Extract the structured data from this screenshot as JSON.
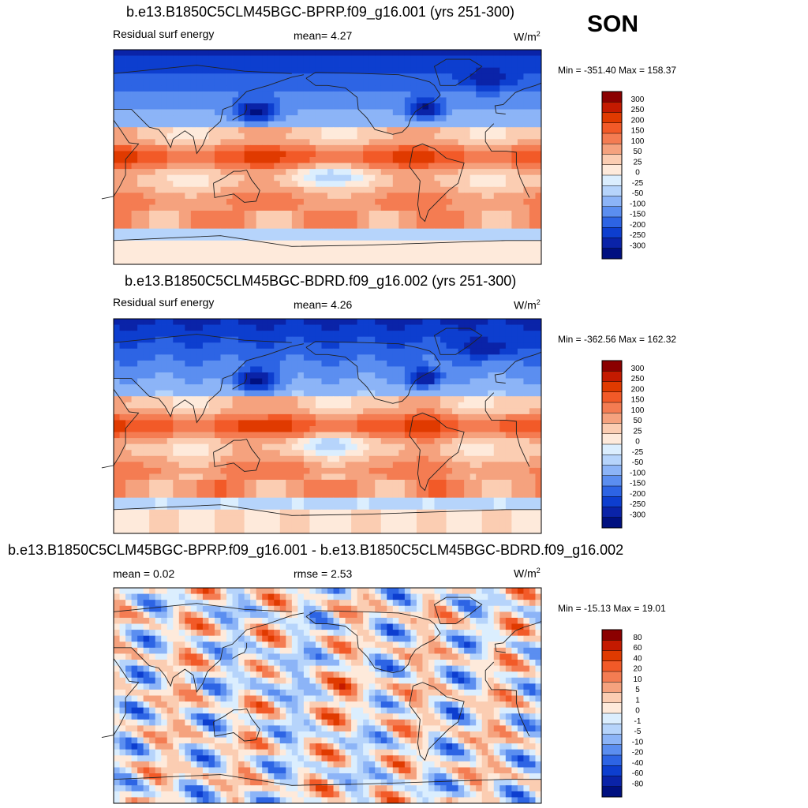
{
  "season": "SON",
  "panels": [
    {
      "title": "b.e13.B1850C5CLM45BGC-BPRP.f09_g16.001 (yrs 251-300)",
      "left_label": "Residual surf energy",
      "center_label": "mean=   4.27",
      "units": "W/m",
      "units_sup": "2",
      "minmax": "Min = -351.40 Max = 158.37"
    },
    {
      "title": "b.e13.B1850C5CLM45BGC-BDRD.f09_g16.002 (yrs 251-300)",
      "left_label": "Residual surf energy",
      "center_label": "mean=   4.26",
      "units": "W/m",
      "units_sup": "2",
      "minmax": "Min = -362.56 Max = 162.32"
    },
    {
      "title": "b.e13.B1850C5CLM45BGC-BPRP.f09_g16.001 - b.e13.B1850C5CLM45BGC-BDRD.f09_g16.002",
      "left_label": "mean =   0.02",
      "center_label": "rmse =   2.53",
      "units": "W/m",
      "units_sup": "2",
      "minmax": "Min = -15.13 Max =  19.01"
    }
  ],
  "chart_data": [
    {
      "type": "heatmap",
      "title": "b.e13.B1850C5CLM45BGC-BPRP.f09_g16.001 (yrs 251-300)",
      "variable": "Residual surf energy",
      "units": "W/m2",
      "mean": 4.27,
      "min": -351.4,
      "max": 158.37,
      "colorbar_levels": [
        "300",
        "250",
        "200",
        "150",
        "100",
        "50",
        "25",
        "0",
        "-25",
        "-50",
        "-100",
        "-150",
        "-200",
        "-250",
        "-300"
      ],
      "colorbar_colors": [
        "#8b0000",
        "#c41a00",
        "#e03a00",
        "#f25a28",
        "#f47c52",
        "#f5a27e",
        "#fbcdb2",
        "#feeadb",
        "#dbeefe",
        "#b6d4fb",
        "#8cb4f7",
        "#5b8ef0",
        "#2d64e4",
        "#0d3ecf",
        "#0a23a8",
        "#001080"
      ]
    },
    {
      "type": "heatmap",
      "title": "b.e13.B1850C5CLM45BGC-BDRD.f09_g16.002 (yrs 251-300)",
      "variable": "Residual surf energy",
      "units": "W/m2",
      "mean": 4.26,
      "min": -362.56,
      "max": 162.32,
      "colorbar_levels": [
        "300",
        "250",
        "200",
        "150",
        "100",
        "50",
        "25",
        "0",
        "-25",
        "-50",
        "-100",
        "-150",
        "-200",
        "-250",
        "-300"
      ],
      "colorbar_colors": [
        "#8b0000",
        "#c41a00",
        "#e03a00",
        "#f25a28",
        "#f47c52",
        "#f5a27e",
        "#fbcdb2",
        "#feeadb",
        "#dbeefe",
        "#b6d4fb",
        "#8cb4f7",
        "#5b8ef0",
        "#2d64e4",
        "#0d3ecf",
        "#0a23a8",
        "#001080"
      ]
    },
    {
      "type": "heatmap",
      "title": "b.e13.B1850C5CLM45BGC-BPRP.f09_g16.001 - b.e13.B1850C5CLM45BGC-BDRD.f09_g16.002",
      "units": "W/m2",
      "mean": 0.02,
      "rmse": 2.53,
      "min": -15.13,
      "max": 19.01,
      "colorbar_levels": [
        "80",
        "60",
        "40",
        "20",
        "10",
        "5",
        "1",
        "0",
        "-1",
        "-5",
        "-10",
        "-20",
        "-40",
        "-60",
        "-80"
      ],
      "colorbar_colors": [
        "#8b0000",
        "#c41a00",
        "#e03a00",
        "#f25a28",
        "#f47c52",
        "#f5a27e",
        "#fbcdb2",
        "#feeadb",
        "#dbeefe",
        "#b6d4fb",
        "#8cb4f7",
        "#5b8ef0",
        "#2d64e4",
        "#0d3ecf",
        "#0a23a8",
        "#001080"
      ]
    }
  ]
}
